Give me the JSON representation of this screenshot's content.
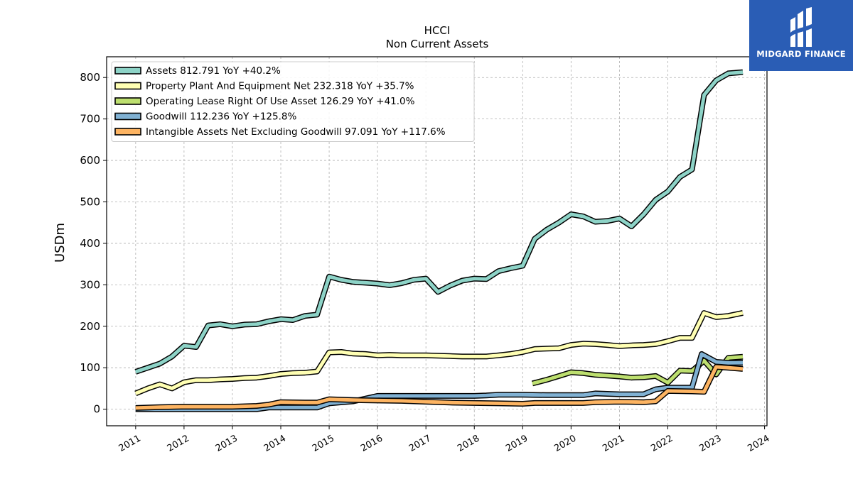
{
  "brand": {
    "name": "MIDGARD FINANCE",
    "color": "#2a5db5"
  },
  "chart_data": {
    "type": "line",
    "title": "HCCI",
    "subtitle": "Non Current  Assets",
    "ylabel": "USDm",
    "xlabel": "",
    "xlim": [
      2010.4,
      2024.05
    ],
    "ylim": [
      -40,
      850
    ],
    "x_ticks": [
      "2011",
      "2012",
      "2013",
      "2014",
      "2015",
      "2016",
      "2017",
      "2018",
      "2019",
      "2020",
      "2021",
      "2022",
      "2023",
      "2024"
    ],
    "y_ticks": [
      0,
      100,
      200,
      300,
      400,
      500,
      600,
      700,
      800
    ],
    "grid": true,
    "legend_position": "top-left",
    "series": [
      {
        "name": "Assets",
        "legend": "Assets  812.791 YoY +40.2%",
        "color": "#8dd3c7",
        "points": [
          [
            2011.0,
            90
          ],
          [
            2011.25,
            100
          ],
          [
            2011.5,
            110
          ],
          [
            2011.75,
            127
          ],
          [
            2012.0,
            153
          ],
          [
            2012.25,
            150
          ],
          [
            2012.5,
            202
          ],
          [
            2012.75,
            205
          ],
          [
            2013.0,
            200
          ],
          [
            2013.25,
            204
          ],
          [
            2013.5,
            205
          ],
          [
            2013.75,
            212
          ],
          [
            2014.0,
            217
          ],
          [
            2014.25,
            215
          ],
          [
            2014.5,
            225
          ],
          [
            2014.75,
            228
          ],
          [
            2015.0,
            320
          ],
          [
            2015.25,
            312
          ],
          [
            2015.5,
            307
          ],
          [
            2015.75,
            305
          ],
          [
            2016.0,
            303
          ],
          [
            2016.25,
            299
          ],
          [
            2016.5,
            304
          ],
          [
            2016.75,
            312
          ],
          [
            2017.0,
            315
          ],
          [
            2017.25,
            283
          ],
          [
            2017.5,
            298
          ],
          [
            2017.75,
            310
          ],
          [
            2018.0,
            315
          ],
          [
            2018.25,
            314
          ],
          [
            2018.5,
            333
          ],
          [
            2018.75,
            340
          ],
          [
            2019.0,
            346
          ],
          [
            2019.25,
            411
          ],
          [
            2019.5,
            433
          ],
          [
            2019.75,
            450
          ],
          [
            2020.0,
            470
          ],
          [
            2020.25,
            465
          ],
          [
            2020.5,
            452
          ],
          [
            2020.75,
            454
          ],
          [
            2021.0,
            460
          ],
          [
            2021.25,
            441
          ],
          [
            2021.5,
            470
          ],
          [
            2021.75,
            505
          ],
          [
            2022.0,
            525
          ],
          [
            2022.25,
            560
          ],
          [
            2022.5,
            578
          ],
          [
            2022.75,
            758
          ],
          [
            2023.0,
            793
          ],
          [
            2023.25,
            810
          ],
          [
            2023.55,
            812.791
          ]
        ]
      },
      {
        "name": "Property Plant And Equipment Net",
        "legend": "Property Plant And Equipment Net  232.318 YoY +35.7%",
        "color": "#ffffb3",
        "points": [
          [
            2011.0,
            38
          ],
          [
            2011.25,
            50
          ],
          [
            2011.5,
            60
          ],
          [
            2011.75,
            50
          ],
          [
            2012.0,
            65
          ],
          [
            2012.25,
            70
          ],
          [
            2012.5,
            70
          ],
          [
            2012.75,
            72
          ],
          [
            2013.0,
            73
          ],
          [
            2013.25,
            75
          ],
          [
            2013.5,
            76
          ],
          [
            2013.75,
            80
          ],
          [
            2014.0,
            85
          ],
          [
            2014.25,
            87
          ],
          [
            2014.5,
            88
          ],
          [
            2014.75,
            91
          ],
          [
            2015.0,
            137
          ],
          [
            2015.25,
            138
          ],
          [
            2015.5,
            134
          ],
          [
            2015.75,
            133
          ],
          [
            2016.0,
            130
          ],
          [
            2016.25,
            131
          ],
          [
            2016.5,
            130
          ],
          [
            2016.75,
            130
          ],
          [
            2017.0,
            130
          ],
          [
            2017.25,
            129
          ],
          [
            2017.5,
            128
          ],
          [
            2017.75,
            127
          ],
          [
            2018.0,
            127
          ],
          [
            2018.25,
            127
          ],
          [
            2018.5,
            130
          ],
          [
            2018.75,
            133
          ],
          [
            2019.0,
            138
          ],
          [
            2019.25,
            145
          ],
          [
            2019.5,
            146
          ],
          [
            2019.75,
            147
          ],
          [
            2020.0,
            155
          ],
          [
            2020.25,
            158
          ],
          [
            2020.5,
            157
          ],
          [
            2020.75,
            155
          ],
          [
            2021.0,
            152
          ],
          [
            2021.25,
            154
          ],
          [
            2021.5,
            155
          ],
          [
            2021.75,
            157
          ],
          [
            2022.0,
            164
          ],
          [
            2022.25,
            172
          ],
          [
            2022.5,
            172
          ],
          [
            2022.75,
            232
          ],
          [
            2023.0,
            222
          ],
          [
            2023.25,
            225
          ],
          [
            2023.55,
            232.318
          ]
        ]
      },
      {
        "name": "Operating Lease Right Of Use Asset",
        "legend": "Operating Lease Right Of Use Asset  126.29 YoY +41.0%",
        "color": "#bddf6f",
        "points": [
          [
            2019.2,
            62
          ],
          [
            2019.5,
            71
          ],
          [
            2019.75,
            80
          ],
          [
            2020.0,
            89
          ],
          [
            2020.25,
            87
          ],
          [
            2020.5,
            83
          ],
          [
            2020.75,
            81
          ],
          [
            2021.0,
            79
          ],
          [
            2021.25,
            76
          ],
          [
            2021.5,
            77
          ],
          [
            2021.75,
            80
          ],
          [
            2022.0,
            64
          ],
          [
            2022.25,
            93
          ],
          [
            2022.5,
            92
          ],
          [
            2022.75,
            117
          ],
          [
            2023.0,
            84
          ],
          [
            2023.25,
            124
          ],
          [
            2023.55,
            126.29
          ]
        ]
      },
      {
        "name": "Goodwill",
        "legend": "Goodwill  112.236 YoY +125.8%",
        "color": "#80b1d3",
        "points": [
          [
            2011.0,
            0
          ],
          [
            2011.5,
            0
          ],
          [
            2012.0,
            0
          ],
          [
            2012.5,
            0
          ],
          [
            2013.0,
            0
          ],
          [
            2013.5,
            0
          ],
          [
            2013.75,
            4
          ],
          [
            2014.0,
            4
          ],
          [
            2014.5,
            4
          ],
          [
            2014.75,
            4
          ],
          [
            2015.0,
            14
          ],
          [
            2015.5,
            19
          ],
          [
            2016.0,
            32
          ],
          [
            2016.5,
            32
          ],
          [
            2017.0,
            32
          ],
          [
            2017.5,
            32
          ],
          [
            2018.0,
            32
          ],
          [
            2018.25,
            33
          ],
          [
            2018.5,
            35
          ],
          [
            2019.0,
            35
          ],
          [
            2019.5,
            34
          ],
          [
            2020.0,
            34
          ],
          [
            2020.25,
            34
          ],
          [
            2020.5,
            38
          ],
          [
            2021.0,
            36
          ],
          [
            2021.5,
            36
          ],
          [
            2021.75,
            48
          ],
          [
            2022.0,
            52
          ],
          [
            2022.5,
            52
          ],
          [
            2022.7,
            133
          ],
          [
            2023.0,
            114
          ],
          [
            2023.25,
            112
          ],
          [
            2023.55,
            112.236
          ]
        ]
      },
      {
        "name": "Intangible Assets Net Excluding Goodwill",
        "legend": "Intangible Assets Net Excluding Goodwill  97.091 YoY +117.6%",
        "color": "#fdb462",
        "points": [
          [
            2011.0,
            3
          ],
          [
            2011.5,
            5
          ],
          [
            2012.0,
            6
          ],
          [
            2012.5,
            6
          ],
          [
            2013.0,
            6
          ],
          [
            2013.5,
            8
          ],
          [
            2013.75,
            11
          ],
          [
            2014.0,
            17
          ],
          [
            2014.5,
            16
          ],
          [
            2014.75,
            16
          ],
          [
            2015.0,
            24
          ],
          [
            2015.5,
            22
          ],
          [
            2016.0,
            21
          ],
          [
            2016.5,
            20
          ],
          [
            2017.0,
            18
          ],
          [
            2017.5,
            16
          ],
          [
            2018.0,
            15
          ],
          [
            2018.5,
            14
          ],
          [
            2019.0,
            13
          ],
          [
            2019.25,
            15
          ],
          [
            2019.5,
            15
          ],
          [
            2020.0,
            15
          ],
          [
            2020.25,
            15
          ],
          [
            2020.5,
            17
          ],
          [
            2021.0,
            18
          ],
          [
            2021.5,
            17
          ],
          [
            2021.75,
            19
          ],
          [
            2022.0,
            44
          ],
          [
            2022.5,
            43
          ],
          [
            2022.75,
            42
          ],
          [
            2023.0,
            102
          ],
          [
            2023.25,
            100
          ],
          [
            2023.55,
            97.091
          ]
        ]
      }
    ]
  }
}
